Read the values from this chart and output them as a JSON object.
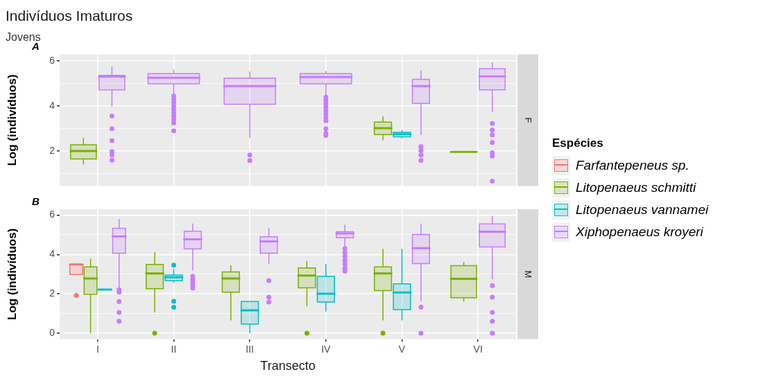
{
  "chart_data": [
    {
      "type": "box",
      "title": "Indivíduos Imaturos",
      "subtitle": "Jovens",
      "ylabel": "Log (indivíduos)",
      "annotations": [
        "A",
        "F"
      ],
      "categories": [
        null,
        null,
        null,
        null,
        null,
        null
      ],
      "ylim": [
        0.45,
        6.3
      ],
      "yticks": [
        {
          "value": 1,
          "label": null
        },
        2,
        {
          "value": 3,
          "label": null
        },
        4,
        {
          "value": 5,
          "label": null
        },
        6
      ],
      "grid": true,
      "tick_labels": "y",
      "legend": "right",
      "legend_title": "Espécies",
      "series": [
        {
          "name": "Farfantepeneus sp.",
          "color": "#f8766d",
          "boxes": [
            null,
            null,
            null,
            null,
            null,
            null
          ]
        },
        {
          "name": "Litopenaeus schmitti",
          "color": "#7cae00",
          "boxes": [
            {
              "low": 1.42,
              "q1": 1.65,
              "median": 2.01,
              "q3": 2.28,
              "high": 2.57
            },
            null,
            null,
            null,
            {
              "low": 2.5,
              "q1": 2.74,
              "median": 3.02,
              "q3": 3.29,
              "high": 3.53
            },
            {
              "low": 1.97,
              "q1": 1.97,
              "median": 1.97,
              "q3": 1.97,
              "high": 1.97
            }
          ]
        },
        {
          "name": "Litopenaeus vannamei",
          "color": "#00bfc4",
          "boxes": [
            null,
            null,
            null,
            null,
            {
              "low": 2.59,
              "q1": 2.64,
              "median": 2.75,
              "q3": 2.84,
              "high": 2.92
            },
            null
          ]
        },
        {
          "name": "Xiphopenaeus kroyeri",
          "color": "#c77cff",
          "boxes": [
            {
              "low": 4.0,
              "q1": 4.72,
              "median": 5.31,
              "q3": 5.37,
              "high": 5.73,
              "outliers": [
                3.56,
                3.0,
                2.47,
                1.98,
                1.83,
                1.6
              ]
            },
            {
              "low": 4.5,
              "q1": 4.99,
              "median": 5.26,
              "q3": 5.44,
              "high": 5.6,
              "outliers": [
                4.45,
                4.3,
                4.15,
                4.0,
                3.85,
                3.7,
                3.55,
                3.4,
                3.25,
                2.9
              ]
            },
            {
              "low": 2.6,
              "q1": 4.08,
              "median": 4.89,
              "q3": 5.24,
              "high": 5.52,
              "outliers": [
                1.83,
                1.58
              ]
            },
            {
              "low": 4.45,
              "q1": 4.99,
              "median": 5.29,
              "q3": 5.44,
              "high": 5.54,
              "outliers": [
                4.4,
                4.25,
                4.1,
                3.95,
                3.8,
                3.65,
                3.5,
                3.35,
                3.0,
                2.8,
                2.7
              ]
            },
            {
              "low": 2.74,
              "q1": 4.12,
              "median": 4.89,
              "q3": 5.19,
              "high": 5.57,
              "outliers": [
                2.2,
                2.03,
                1.83,
                1.59
              ]
            },
            {
              "low": 3.76,
              "q1": 4.72,
              "median": 5.32,
              "q3": 5.66,
              "high": 5.93,
              "outliers": [
                3.23,
                2.94,
                2.72,
                2.38,
                1.93,
                1.78,
                0.67
              ]
            }
          ]
        }
      ]
    },
    {
      "type": "box",
      "xlabel": "Transecto",
      "ylabel": "Log (indivíduos)",
      "annotations": [
        "B",
        "M"
      ],
      "categories": [
        "I",
        "II",
        "III",
        "IV",
        "V",
        "VI"
      ],
      "ylim": [
        -0.3,
        6.3
      ],
      "yticks": [
        0,
        {
          "value": 1,
          "label": null
        },
        2,
        {
          "value": 3,
          "label": null
        },
        4,
        {
          "value": 5,
          "label": null
        },
        6
      ],
      "grid": true,
      "series": [
        {
          "color": "#f8766d",
          "boxes": [
            {
              "low": 2.98,
              "q1": 2.98,
              "median": 3.49,
              "q3": 3.49,
              "high": 3.49,
              "outliers": [
                1.92
              ]
            },
            null,
            null,
            null,
            null,
            null
          ]
        },
        {
          "color": "#7cae00",
          "boxes": [
            {
              "low": 0.02,
              "q1": 1.98,
              "median": 2.78,
              "q3": 3.37,
              "high": 3.77
            },
            {
              "low": 1.08,
              "q1": 2.26,
              "median": 3.04,
              "q3": 3.49,
              "high": 4.1,
              "outliers": [
                0
              ]
            },
            {
              "low": 0.67,
              "q1": 2.09,
              "median": 2.78,
              "q3": 3.12,
              "high": 3.43
            },
            {
              "low": 1.39,
              "q1": 2.31,
              "median": 2.93,
              "q3": 3.32,
              "high": 3.65,
              "outliers": [
                0
              ]
            },
            {
              "low": 0.67,
              "q1": 2.17,
              "median": 3.04,
              "q3": 3.37,
              "high": 4.27,
              "outliers": [
                0
              ]
            },
            {
              "low": 1.64,
              "q1": 1.81,
              "median": 2.76,
              "q3": 3.43,
              "high": 3.6
            }
          ]
        },
        {
          "color": "#00bfc4",
          "boxes": [
            {
              "low": 2.22,
              "q1": 2.22,
              "median": 2.22,
              "q3": 2.22,
              "high": 2.22
            },
            {
              "low": 2.59,
              "q1": 2.67,
              "median": 2.84,
              "q3": 2.96,
              "high": 3.26,
              "outliers": [
                3.46,
                1.62,
                1.32
              ]
            },
            {
              "low": 0.02,
              "q1": 0.47,
              "median": 1.16,
              "q3": 1.61,
              "high": 1.61
            },
            {
              "low": 1.12,
              "q1": 1.59,
              "median": 2.01,
              "q3": 2.89,
              "high": 3.49
            },
            {
              "low": 0.67,
              "q1": 1.2,
              "median": 2.07,
              "q3": 2.51,
              "high": 4.27
            },
            null
          ]
        },
        {
          "color": "#c77cff",
          "boxes": [
            {
              "low": 2.31,
              "q1": 4.07,
              "median": 4.92,
              "q3": 5.33,
              "high": 5.78,
              "outliers": [
                2.2,
                2.09,
                1.61,
                1.06,
                0.61
              ]
            },
            {
              "low": 3.21,
              "q1": 4.29,
              "median": 4.77,
              "q3": 5.18,
              "high": 5.55,
              "outliers": [
                2.9,
                2.75,
                2.6,
                2.45,
                2.3
              ]
            },
            {
              "low": 3.54,
              "q1": 4.07,
              "median": 4.66,
              "q3": 4.9,
              "high": 5.33,
              "outliers": [
                2.68,
                1.83,
                1.59
              ]
            },
            {
              "low": 4.38,
              "q1": 4.85,
              "median": 5.07,
              "q3": 5.16,
              "high": 5.5,
              "outliers": [
                4.3,
                4.1,
                3.9,
                3.7,
                3.5,
                3.3,
                3.15
              ]
            },
            {
              "low": 1.64,
              "q1": 3.54,
              "median": 4.32,
              "q3": 5.02,
              "high": 5.55,
              "outliers": [
                1.33,
                0
              ]
            },
            {
              "low": 2.76,
              "q1": 4.38,
              "median": 5.16,
              "q3": 5.55,
              "high": 5.94,
              "outliers": [
                2.42,
                1.83,
                1.06,
                0.61,
                0
              ]
            }
          ]
        }
      ]
    }
  ]
}
